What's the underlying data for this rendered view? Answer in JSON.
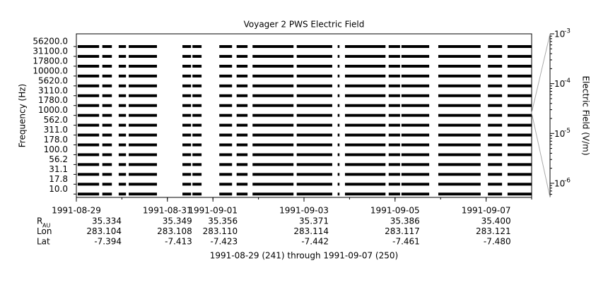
{
  "chart_data": {
    "type": "spectrogram",
    "title": "Voyager 2 PWS Electric Field",
    "ylabel": "Frequency (Hz)",
    "y2label": "Electric Field (V/m)",
    "categories": [
      "56200.0",
      "31100.0",
      "17800.0",
      "10000.0",
      "5620.0",
      "3110.0",
      "1780.0",
      "1000.0",
      "562.0",
      "311.0",
      "178.0",
      "100.0",
      "56.2",
      "31.1",
      "17.8",
      "10.0"
    ],
    "xlim": [
      0,
      10
    ],
    "xticks": [
      {
        "value": 0,
        "label": "1991-08-29"
      },
      {
        "value": 2,
        "label": "1991-08-31"
      },
      {
        "value": 3,
        "label": "1991-09-01"
      },
      {
        "value": 5,
        "label": "1991-09-03"
      },
      {
        "value": 7,
        "label": "1991-09-05"
      },
      {
        "value": 9,
        "label": "1991-09-07"
      }
    ],
    "coverage": [
      [
        0.03,
        0.5
      ],
      [
        0.57,
        0.78
      ],
      [
        0.93,
        1.09
      ],
      [
        1.15,
        1.77
      ],
      [
        2.33,
        2.52
      ],
      [
        2.55,
        2.75
      ],
      [
        3.14,
        3.42
      ],
      [
        3.52,
        3.76
      ],
      [
        3.87,
        4.77
      ],
      [
        4.84,
        5.62
      ],
      [
        5.74,
        5.78
      ],
      [
        5.9,
        6.79
      ],
      [
        6.86,
        7.11
      ],
      [
        7.14,
        7.75
      ],
      [
        7.95,
        8.88
      ],
      [
        9.04,
        9.35
      ],
      [
        9.47,
        10.0
      ]
    ],
    "color": "#000000",
    "y2lim": [
      5.2e-07,
      0.001
    ],
    "y2scale": "log",
    "y2ticks": [
      {
        "value": 0.001,
        "label": "10",
        "exponent": "-3"
      },
      {
        "value": 0.0001,
        "label": "10",
        "exponent": "-4"
      },
      {
        "value": 1e-05,
        "label": "10",
        "exponent": "-5"
      },
      {
        "value": 1e-06,
        "label": "10",
        "exponent": "-6"
      }
    ],
    "ephemeris": [
      {
        "label": "R",
        "sub": "AU",
        "values": [
          "35.334",
          "35.349",
          "35.356",
          "35.371",
          "35.386",
          "35.400"
        ]
      },
      {
        "label": "Lon",
        "values": [
          "283.104",
          "283.108",
          "283.110",
          "283.114",
          "283.117",
          "283.121"
        ]
      },
      {
        "label": "Lat",
        "values": [
          "-7.394",
          "-7.413",
          "-7.423",
          "-7.442",
          "-7.461",
          "-7.480"
        ]
      }
    ],
    "footer": "1991-08-29 (241) through 1991-09-07 (250)"
  }
}
